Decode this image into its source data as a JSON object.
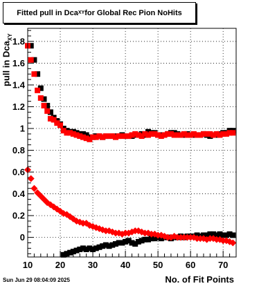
{
  "title": {
    "prefix": "Fitted pull in Dca",
    "subscript": "XY",
    "suffix": " for Global Rec Pion NoHits"
  },
  "footer_timestamp": "Sun Jun 29 08:04:09 2025",
  "chart_data": {
    "type": "scatter",
    "xlabel": "No. of Fit Points",
    "ylabel": {
      "main": "pull in Dca",
      "subscript": "XY"
    },
    "xlim": [
      10,
      74
    ],
    "ylim": [
      -0.18,
      1.92
    ],
    "xticks": [
      10,
      20,
      30,
      40,
      50,
      60,
      70
    ],
    "yticks": [
      0,
      0.2,
      0.4,
      0.6,
      0.8,
      1,
      1.2,
      1.4,
      1.6,
      1.8
    ],
    "ytick_labels": [
      "0",
      "0.2",
      "0.4",
      "0.6",
      "0.8",
      "1",
      "1.2",
      "1.4",
      "1.6",
      "1.8"
    ],
    "grid": true,
    "series": [
      {
        "marker": "square",
        "color": "#000000",
        "x": [
          11,
          12,
          13,
          14,
          15,
          16,
          17,
          18,
          19,
          20,
          21,
          22,
          23,
          24,
          25,
          26,
          27,
          28,
          29,
          30,
          31,
          32,
          33,
          34,
          35,
          36,
          37,
          38,
          39,
          40,
          41,
          42,
          43,
          44,
          45,
          46,
          47,
          48,
          49,
          50,
          51,
          52,
          53,
          54,
          55,
          56,
          57,
          58,
          59,
          60,
          61,
          62,
          63,
          64,
          65,
          66,
          67,
          68,
          69,
          70,
          71,
          72,
          73
        ],
        "y": [
          1.76,
          1.63,
          1.5,
          1.37,
          1.27,
          1.21,
          1.15,
          1.1,
          1.07,
          1.04,
          1.0,
          0.98,
          0.97,
          0.97,
          0.96,
          0.95,
          0.95,
          0.94,
          0.92,
          0.92,
          0.93,
          0.93,
          0.92,
          0.93,
          0.93,
          0.93,
          0.93,
          0.93,
          0.94,
          0.93,
          0.93,
          0.93,
          0.94,
          0.94,
          0.95,
          0.94,
          0.97,
          0.96,
          0.96,
          0.94,
          0.94,
          0.94,
          0.95,
          0.96,
          0.96,
          0.95,
          0.94,
          0.94,
          0.95,
          0.94,
          0.94,
          0.94,
          0.94,
          0.95,
          0.94,
          0.93,
          0.94,
          0.94,
          0.95,
          0.96,
          0.96,
          0.98,
          0.98
        ]
      },
      {
        "marker": "square",
        "color": "#ff0000",
        "x": [
          10,
          11,
          12,
          13,
          14,
          15,
          16,
          17,
          18,
          19,
          20,
          21,
          22,
          23,
          24,
          25,
          26,
          27,
          28,
          29,
          30,
          31,
          32,
          33,
          34,
          35,
          36,
          37,
          38,
          39,
          40,
          41,
          42,
          43,
          44,
          45,
          46,
          47,
          48,
          49,
          50,
          51,
          52,
          53,
          54,
          55,
          56,
          57,
          58,
          59,
          60,
          61,
          62,
          63,
          64,
          65,
          66,
          67,
          68,
          69,
          70,
          71,
          72,
          73
        ],
        "y": [
          1.76,
          1.63,
          1.5,
          1.35,
          1.28,
          1.21,
          1.16,
          1.09,
          1.08,
          1.05,
          1.03,
          0.98,
          0.96,
          0.96,
          0.95,
          0.94,
          0.93,
          0.92,
          0.91,
          0.9,
          0.92,
          0.92,
          0.93,
          0.92,
          0.93,
          0.93,
          0.93,
          0.92,
          0.93,
          0.93,
          0.93,
          0.93,
          0.94,
          0.95,
          0.94,
          0.93,
          0.95,
          0.94,
          0.95,
          0.95,
          0.94,
          0.93,
          0.94,
          0.95,
          0.95,
          0.94,
          0.94,
          0.94,
          0.95,
          0.94,
          0.94,
          0.95,
          0.94,
          0.94,
          0.95,
          0.95,
          0.95,
          0.94,
          0.95,
          0.94,
          0.95,
          0.95,
          0.96,
          0.96
        ]
      },
      {
        "marker": "square",
        "color": "#000000",
        "x": [
          21,
          22,
          23,
          24,
          25,
          26,
          27,
          28,
          29,
          30,
          31,
          32,
          33,
          34,
          35,
          36,
          37,
          38,
          39,
          40,
          41,
          42,
          43,
          44,
          45,
          46,
          47,
          48,
          49,
          50,
          51,
          52,
          53,
          54,
          55,
          56,
          57,
          58,
          59,
          60,
          61,
          62,
          63,
          64,
          65,
          66,
          67,
          68,
          69,
          70,
          71,
          72,
          73
        ],
        "y": [
          -0.16,
          -0.15,
          -0.14,
          -0.13,
          -0.12,
          -0.11,
          -0.1,
          -0.11,
          -0.1,
          -0.11,
          -0.1,
          -0.09,
          -0.08,
          -0.07,
          -0.08,
          -0.07,
          -0.06,
          -0.05,
          -0.05,
          -0.04,
          -0.03,
          -0.05,
          -0.06,
          -0.04,
          -0.03,
          -0.02,
          -0.02,
          -0.01,
          -0.01,
          0.0,
          -0.01,
          0.0,
          0.0,
          -0.01,
          0.0,
          0.0,
          0.01,
          0.0,
          0.01,
          0.01,
          0.01,
          0.02,
          0.01,
          0.02,
          0.02,
          0.03,
          0.03,
          0.02,
          0.03,
          0.02,
          0.02,
          0.03,
          0.02
        ]
      },
      {
        "marker": "diamond",
        "color": "#ff0000",
        "x": [
          10,
          11,
          12,
          13,
          14,
          15,
          16,
          17,
          18,
          19,
          20,
          21,
          22,
          23,
          24,
          25,
          26,
          27,
          28,
          29,
          30,
          31,
          32,
          33,
          34,
          35,
          36,
          37,
          38,
          39,
          40,
          41,
          42,
          43,
          44,
          45,
          46,
          47,
          48,
          49,
          50,
          51,
          52,
          53,
          54,
          55,
          56,
          57,
          58,
          59,
          60,
          61,
          62,
          63,
          64,
          65,
          66,
          67,
          68,
          69,
          70,
          71,
          72,
          73
        ],
        "y": [
          0.62,
          0.54,
          0.45,
          0.41,
          0.38,
          0.35,
          0.32,
          0.3,
          0.28,
          0.26,
          0.24,
          0.22,
          0.21,
          0.19,
          0.17,
          0.15,
          0.14,
          0.13,
          0.13,
          0.11,
          0.1,
          0.09,
          0.08,
          0.07,
          0.06,
          0.06,
          0.05,
          0.04,
          0.04,
          0.03,
          0.04,
          0.04,
          0.05,
          0.06,
          0.06,
          0.05,
          0.04,
          0.04,
          0.03,
          0.03,
          0.02,
          0.02,
          0.01,
          0.0,
          0.0,
          0.01,
          0.0,
          0.0,
          0.0,
          0.0,
          0.0,
          0.0,
          -0.01,
          -0.01,
          -0.01,
          -0.02,
          -0.01,
          -0.01,
          -0.02,
          -0.02,
          -0.03,
          -0.03,
          -0.04,
          -0.05
        ]
      }
    ]
  }
}
